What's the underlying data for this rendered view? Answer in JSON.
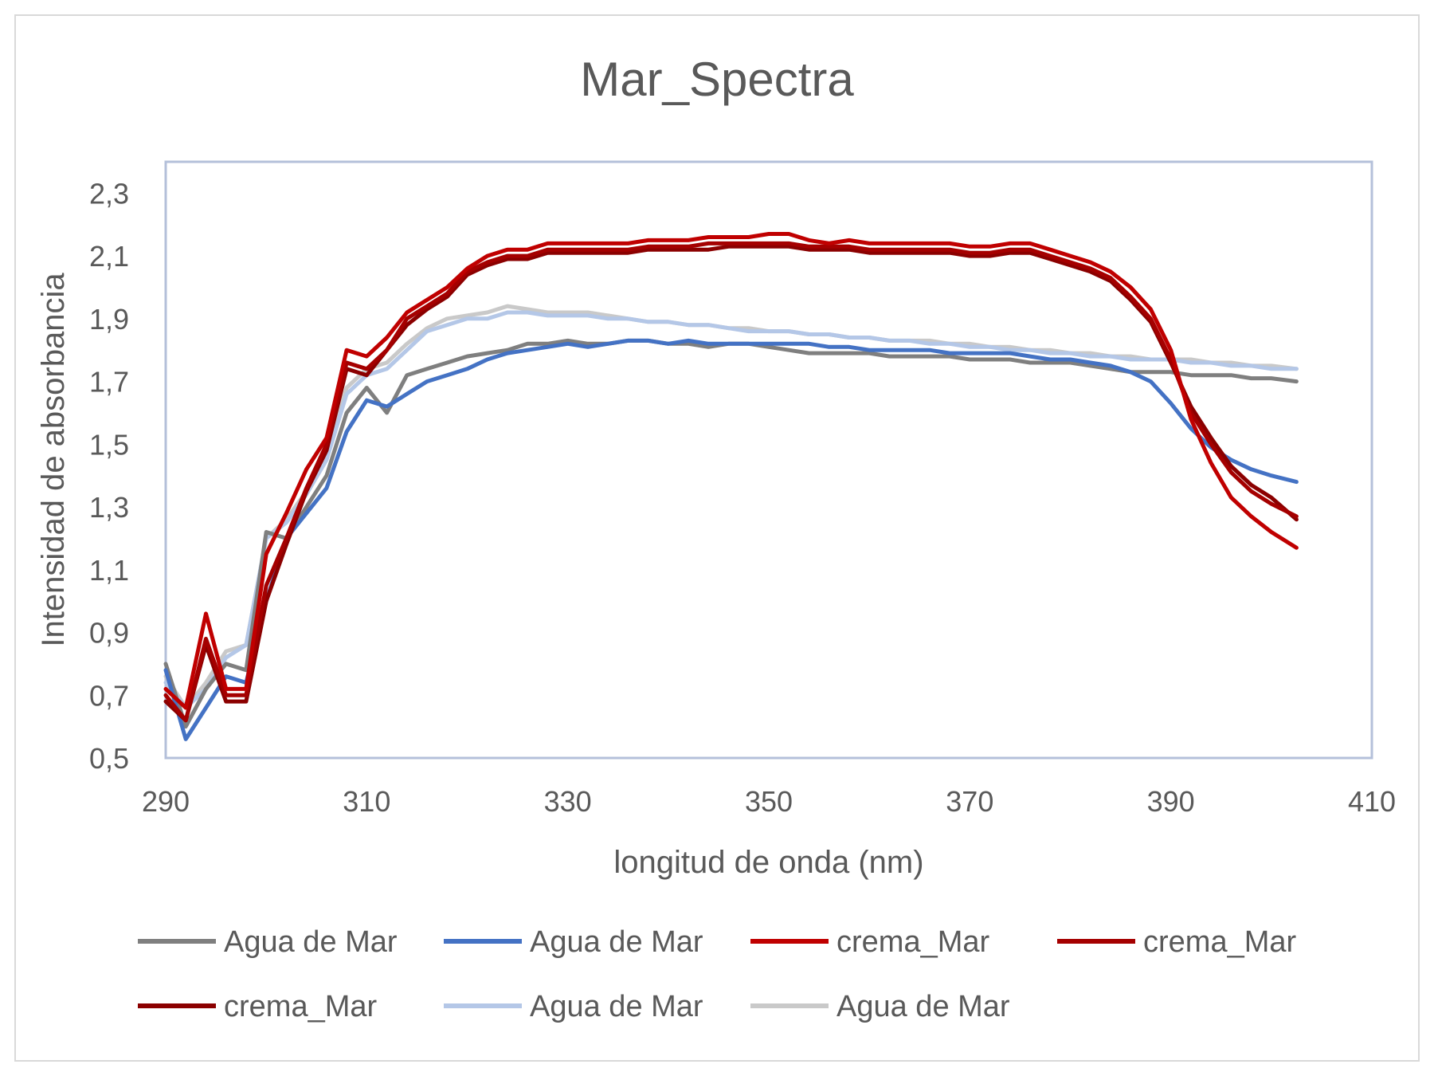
{
  "chart_data": {
    "type": "line",
    "title": "Mar_Spectra",
    "xlabel": "longitud de onda (nm)",
    "ylabel": "Intensidad de absorbancia",
    "xlim": [
      290,
      410
    ],
    "ylim": [
      0.5,
      2.4
    ],
    "x_ticks": [
      290,
      310,
      330,
      350,
      370,
      390,
      410
    ],
    "x_tick_labels": [
      "290",
      "310",
      "330",
      "350",
      "370",
      "390",
      "410"
    ],
    "y_ticks": [
      0.5,
      0.7,
      0.9,
      1.1,
      1.3,
      1.5,
      1.7,
      1.9,
      2.1,
      2.3
    ],
    "y_tick_labels": [
      "0,5",
      "0,7",
      "0,9",
      "1,1",
      "1,3",
      "1,5",
      "1,7",
      "1,9",
      "2,1",
      "2,3"
    ],
    "grid": false,
    "legend_position": "bottom",
    "x": [
      290,
      292,
      294,
      296,
      298,
      300,
      302,
      304,
      306,
      308,
      310,
      312,
      314,
      316,
      318,
      320,
      322,
      324,
      326,
      328,
      330,
      332,
      334,
      336,
      338,
      340,
      342,
      344,
      346,
      348,
      350,
      352,
      354,
      356,
      358,
      360,
      362,
      364,
      366,
      368,
      370,
      372,
      374,
      376,
      378,
      380,
      382,
      384,
      386,
      388,
      390,
      392,
      394,
      396,
      398,
      400,
      402.5
    ],
    "series": [
      {
        "name": "Agua de Mar",
        "color": "#7f7f7f",
        "values": [
          0.8,
          0.6,
          0.72,
          0.8,
          0.78,
          1.22,
          1.2,
          1.3,
          1.4,
          1.6,
          1.68,
          1.6,
          1.72,
          1.74,
          1.76,
          1.78,
          1.79,
          1.8,
          1.82,
          1.82,
          1.83,
          1.82,
          1.82,
          1.83,
          1.83,
          1.82,
          1.82,
          1.81,
          1.82,
          1.82,
          1.81,
          1.8,
          1.79,
          1.79,
          1.79,
          1.79,
          1.78,
          1.78,
          1.78,
          1.78,
          1.77,
          1.77,
          1.77,
          1.76,
          1.76,
          1.76,
          1.75,
          1.74,
          1.73,
          1.73,
          1.73,
          1.72,
          1.72,
          1.72,
          1.71,
          1.71,
          1.7
        ]
      },
      {
        "name": "Agua de Mar",
        "color": "#4472c4",
        "values": [
          0.78,
          0.56,
          0.66,
          0.76,
          0.74,
          1.0,
          1.2,
          1.28,
          1.36,
          1.54,
          1.64,
          1.62,
          1.66,
          1.7,
          1.72,
          1.74,
          1.77,
          1.79,
          1.8,
          1.81,
          1.82,
          1.81,
          1.82,
          1.83,
          1.83,
          1.82,
          1.83,
          1.82,
          1.82,
          1.82,
          1.82,
          1.82,
          1.82,
          1.81,
          1.81,
          1.8,
          1.8,
          1.8,
          1.8,
          1.79,
          1.79,
          1.79,
          1.79,
          1.78,
          1.77,
          1.77,
          1.76,
          1.75,
          1.73,
          1.7,
          1.63,
          1.55,
          1.49,
          1.45,
          1.42,
          1.4,
          1.38
        ]
      },
      {
        "name": "crema_Mar",
        "color": "#c00000",
        "values": [
          0.72,
          0.66,
          0.96,
          0.72,
          0.72,
          1.15,
          1.28,
          1.42,
          1.52,
          1.8,
          1.78,
          1.84,
          1.92,
          1.96,
          2.0,
          2.06,
          2.1,
          2.12,
          2.12,
          2.14,
          2.14,
          2.14,
          2.14,
          2.14,
          2.15,
          2.15,
          2.15,
          2.16,
          2.16,
          2.16,
          2.17,
          2.17,
          2.15,
          2.14,
          2.15,
          2.14,
          2.14,
          2.14,
          2.14,
          2.14,
          2.13,
          2.13,
          2.14,
          2.14,
          2.12,
          2.1,
          2.08,
          2.05,
          2.0,
          1.93,
          1.8,
          1.58,
          1.44,
          1.33,
          1.27,
          1.22,
          1.17
        ]
      },
      {
        "name": "crema_Mar",
        "color": "#a50000",
        "values": [
          0.7,
          0.62,
          0.88,
          0.7,
          0.7,
          1.05,
          1.2,
          1.36,
          1.5,
          1.76,
          1.74,
          1.8,
          1.9,
          1.94,
          1.98,
          2.05,
          2.08,
          2.1,
          2.1,
          2.12,
          2.12,
          2.12,
          2.12,
          2.12,
          2.13,
          2.13,
          2.13,
          2.14,
          2.14,
          2.14,
          2.14,
          2.14,
          2.13,
          2.13,
          2.13,
          2.12,
          2.12,
          2.12,
          2.12,
          2.12,
          2.11,
          2.11,
          2.12,
          2.12,
          2.1,
          2.08,
          2.06,
          2.03,
          1.97,
          1.9,
          1.77,
          1.6,
          1.5,
          1.41,
          1.35,
          1.31,
          1.27
        ]
      },
      {
        "name": "crema_Mar",
        "color": "#8b0000",
        "values": [
          0.68,
          0.62,
          0.86,
          0.68,
          0.68,
          1.0,
          1.18,
          1.35,
          1.48,
          1.74,
          1.72,
          1.8,
          1.88,
          1.93,
          1.97,
          2.04,
          2.07,
          2.09,
          2.09,
          2.11,
          2.11,
          2.11,
          2.11,
          2.11,
          2.12,
          2.12,
          2.12,
          2.12,
          2.13,
          2.13,
          2.13,
          2.13,
          2.12,
          2.12,
          2.12,
          2.11,
          2.11,
          2.11,
          2.11,
          2.11,
          2.1,
          2.1,
          2.11,
          2.11,
          2.09,
          2.07,
          2.05,
          2.02,
          1.96,
          1.89,
          1.76,
          1.62,
          1.52,
          1.43,
          1.37,
          1.33,
          1.26
        ]
      },
      {
        "name": "Agua de Mar",
        "color": "#b4c7e7",
        "values": [
          0.74,
          0.66,
          0.72,
          0.82,
          0.86,
          1.2,
          1.25,
          1.34,
          1.45,
          1.66,
          1.72,
          1.74,
          1.8,
          1.86,
          1.88,
          1.9,
          1.9,
          1.92,
          1.92,
          1.91,
          1.91,
          1.91,
          1.9,
          1.9,
          1.89,
          1.89,
          1.88,
          1.88,
          1.87,
          1.86,
          1.86,
          1.86,
          1.85,
          1.85,
          1.84,
          1.84,
          1.83,
          1.83,
          1.82,
          1.82,
          1.81,
          1.81,
          1.8,
          1.8,
          1.79,
          1.79,
          1.78,
          1.78,
          1.77,
          1.77,
          1.77,
          1.76,
          1.76,
          1.75,
          1.75,
          1.74,
          1.74
        ]
      },
      {
        "name": "Agua de Mar",
        "color": "#c9c9c9",
        "values": [
          0.76,
          0.66,
          0.74,
          0.84,
          0.86,
          1.2,
          1.26,
          1.35,
          1.46,
          1.68,
          1.74,
          1.76,
          1.82,
          1.87,
          1.9,
          1.91,
          1.92,
          1.94,
          1.93,
          1.92,
          1.92,
          1.92,
          1.91,
          1.9,
          1.89,
          1.89,
          1.88,
          1.88,
          1.87,
          1.87,
          1.86,
          1.86,
          1.85,
          1.85,
          1.84,
          1.84,
          1.83,
          1.83,
          1.83,
          1.82,
          1.82,
          1.81,
          1.81,
          1.8,
          1.8,
          1.79,
          1.79,
          1.78,
          1.78,
          1.77,
          1.77,
          1.77,
          1.76,
          1.76,
          1.75,
          1.75,
          1.74
        ]
      }
    ]
  }
}
